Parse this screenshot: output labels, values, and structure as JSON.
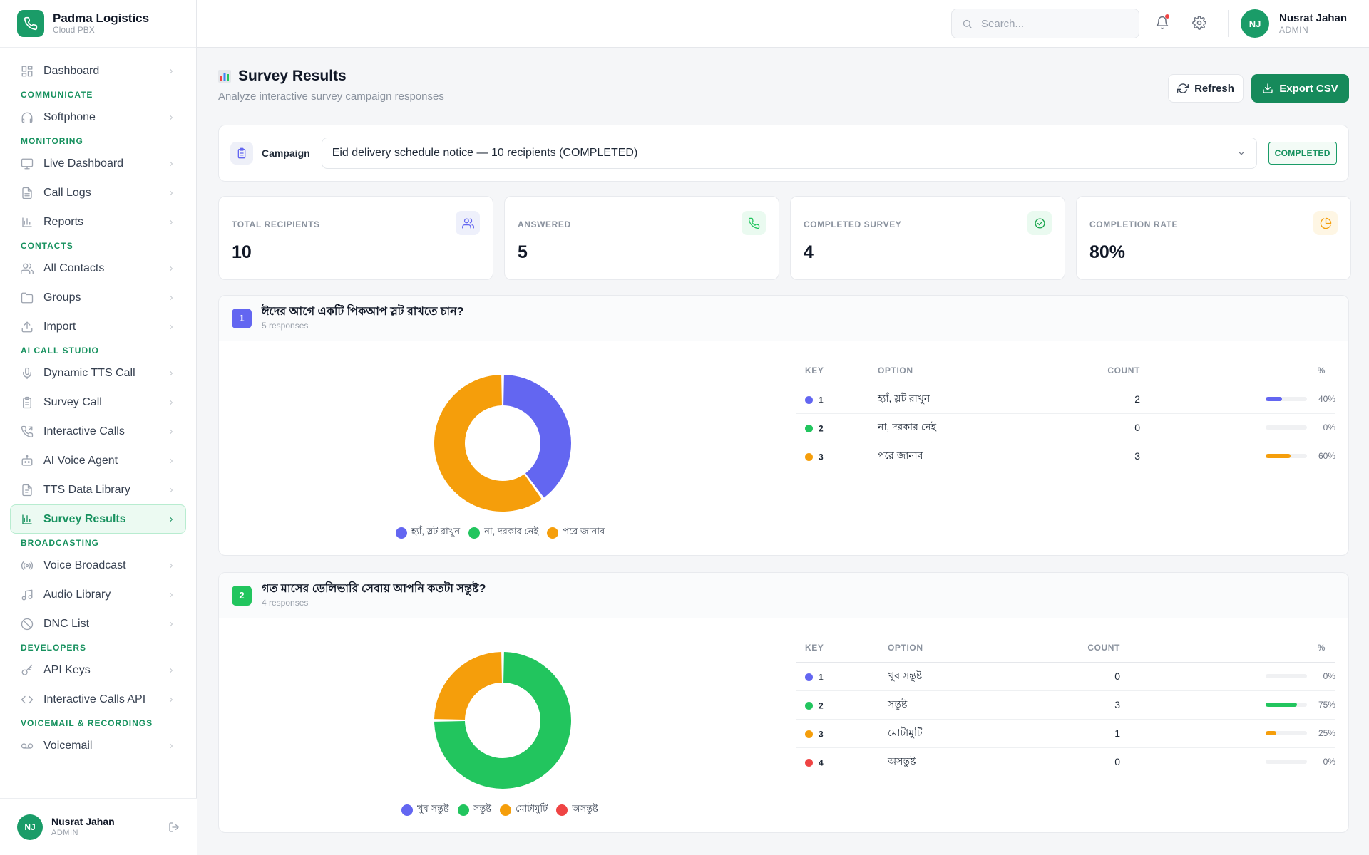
{
  "brand": {
    "name": "Padma Logistics",
    "sub": "Cloud PBX"
  },
  "sidebar": {
    "dashboard": "Dashboard",
    "sections": [
      {
        "title": "COMMUNICATE",
        "items": [
          "Softphone"
        ]
      },
      {
        "title": "MONITORING",
        "items": [
          "Live Dashboard",
          "Call Logs",
          "Reports"
        ]
      },
      {
        "title": "CONTACTS",
        "items": [
          "All Contacts",
          "Groups",
          "Import"
        ]
      },
      {
        "title": "AI CALL STUDIO",
        "items": [
          "Dynamic TTS Call",
          "Survey Call",
          "Interactive Calls",
          "AI Voice Agent",
          "TTS Data Library",
          "Survey Results"
        ]
      },
      {
        "title": "BROADCASTING",
        "items": [
          "Voice Broadcast",
          "Audio Library",
          "DNC List"
        ]
      },
      {
        "title": "DEVELOPERS",
        "items": [
          "API Keys",
          "Interactive Calls API"
        ]
      },
      {
        "title": "VOICEMAIL & RECORDINGS",
        "items": [
          "Voicemail"
        ]
      }
    ],
    "active": "Survey Results"
  },
  "user": {
    "initials": "NJ",
    "name": "Nusrat Jahan",
    "role": "ADMIN"
  },
  "search": {
    "placeholder": "Search..."
  },
  "page": {
    "title": "Survey Results",
    "subtitle": "Analyze interactive survey campaign responses",
    "refresh_label": "Refresh",
    "export_label": "Export CSV"
  },
  "campaign": {
    "label": "Campaign",
    "selected": "Eid delivery schedule notice — 10 recipients (COMPLETED)",
    "status": "COMPLETED"
  },
  "stats": [
    {
      "label": "TOTAL RECIPIENTS",
      "value": "10",
      "icon": "users-icon"
    },
    {
      "label": "ANSWERED",
      "value": "5",
      "icon": "phone-icon"
    },
    {
      "label": "COMPLETED SURVEY",
      "value": "4",
      "icon": "check-circle-icon"
    },
    {
      "label": "COMPLETION RATE",
      "value": "80%",
      "icon": "pie-chart-icon"
    }
  ],
  "table_headers": {
    "key": "KEY",
    "option": "OPTION",
    "count": "COUNT",
    "pct": "%"
  },
  "questions": [
    {
      "num": "1",
      "title": "ঈদের আগে একটি পিকআপ স্লট রাখতে চান?",
      "responses": "5 responses",
      "options": [
        {
          "key": "1",
          "label": "হ্যাঁ, স্লট রাখুন",
          "count": "2",
          "pct": "40%",
          "value": 40,
          "color": "#6366f1"
        },
        {
          "key": "2",
          "label": "না, দরকার নেই",
          "count": "0",
          "pct": "0%",
          "value": 0,
          "color": "#22c55e"
        },
        {
          "key": "3",
          "label": "পরে জানাব",
          "count": "3",
          "pct": "60%",
          "value": 60,
          "color": "#f59e0b"
        }
      ]
    },
    {
      "num": "2",
      "title": "গত মাসের ডেলিভারি সেবায় আপনি কতটা সন্তুষ্ট?",
      "responses": "4 responses",
      "options": [
        {
          "key": "1",
          "label": "খুব সন্তুষ্ট",
          "count": "0",
          "pct": "0%",
          "value": 0,
          "color": "#6366f1"
        },
        {
          "key": "2",
          "label": "সন্তুষ্ট",
          "count": "3",
          "pct": "75%",
          "value": 75,
          "color": "#22c55e"
        },
        {
          "key": "3",
          "label": "মোটামুটি",
          "count": "1",
          "pct": "25%",
          "value": 25,
          "color": "#f59e0b"
        },
        {
          "key": "4",
          "label": "অসন্তুষ্ট",
          "count": "0",
          "pct": "0%",
          "value": 0,
          "color": "#ef4444"
        }
      ]
    }
  ],
  "colors": {
    "brand": "#1a9c68",
    "accent_green": "#16915e",
    "q1_badge": "#6366f1",
    "q2_badge": "#22c55e"
  }
}
